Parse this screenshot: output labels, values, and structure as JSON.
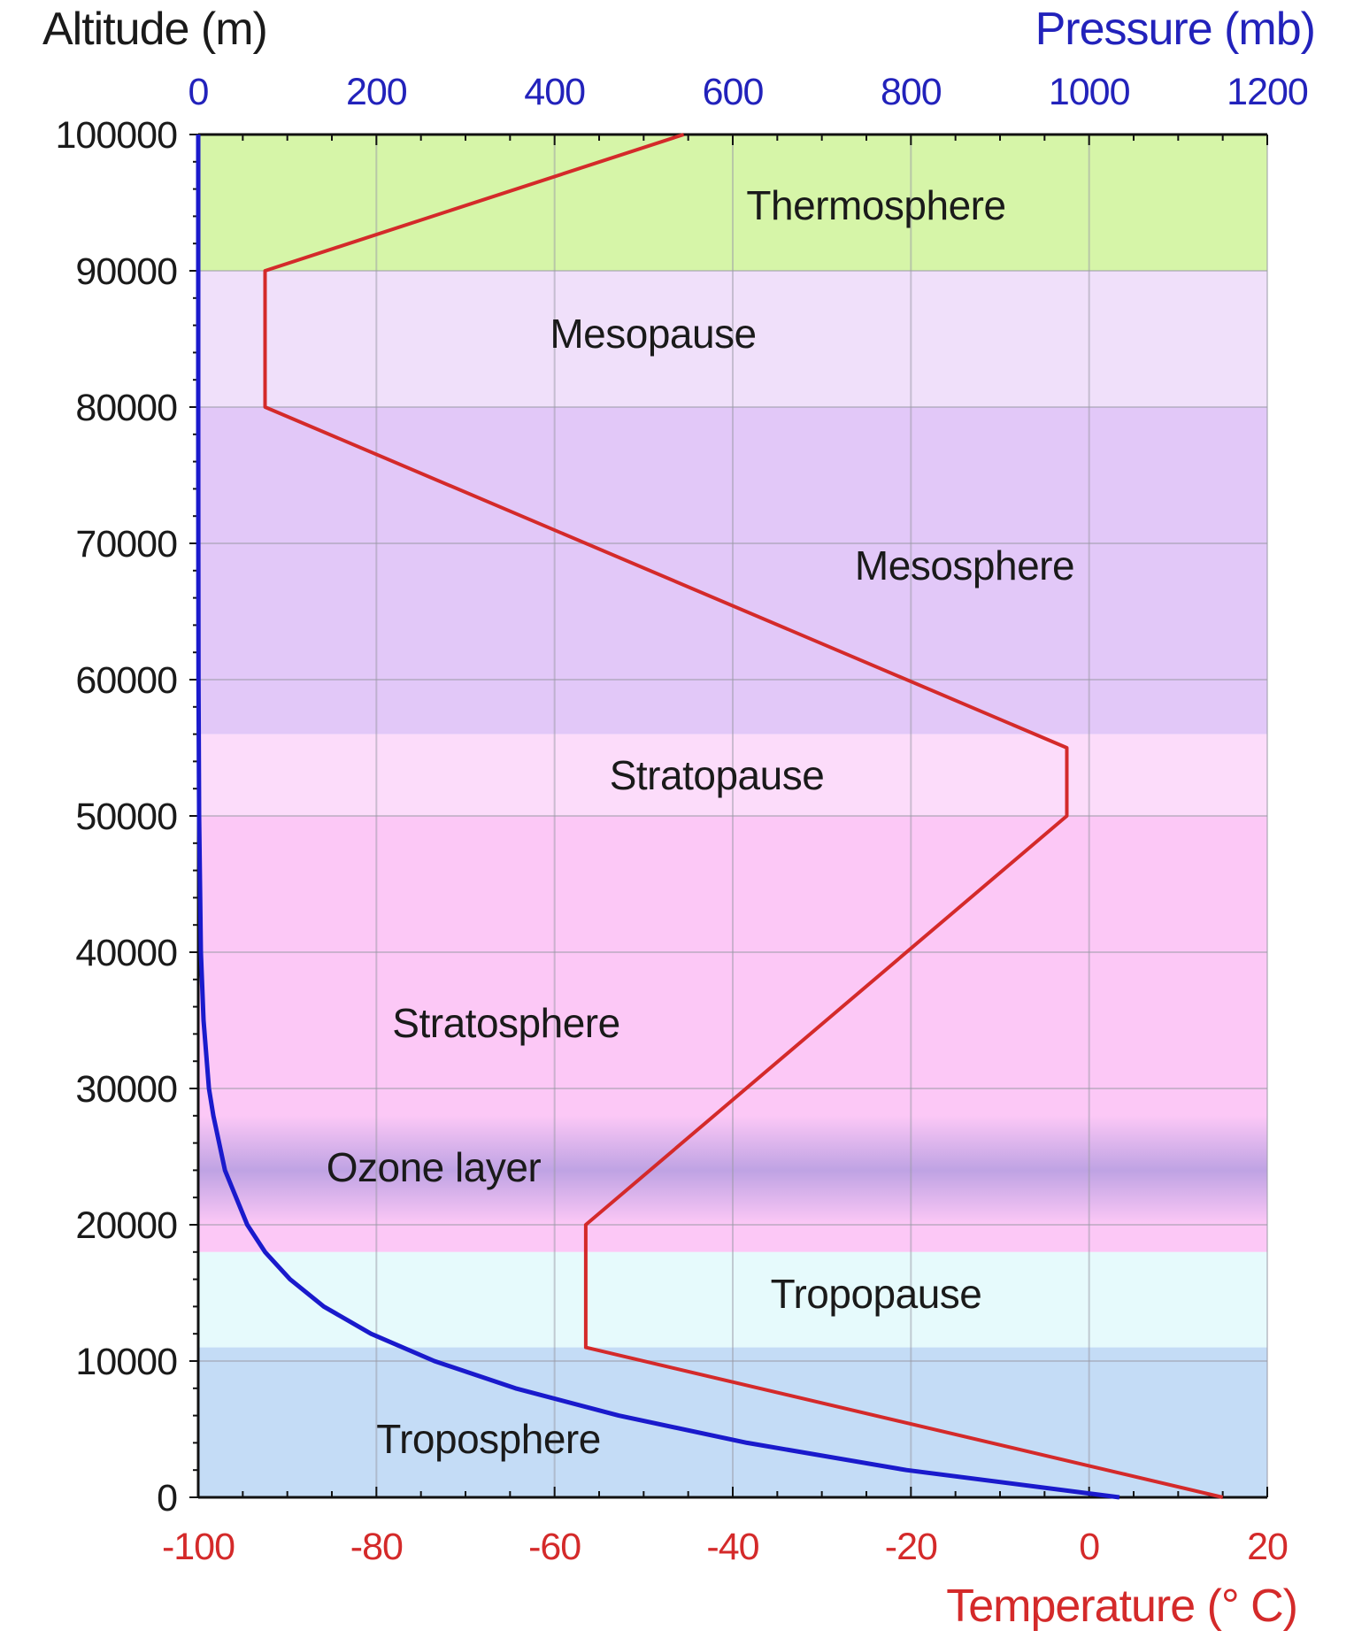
{
  "chart_data": {
    "type": "line",
    "axes": {
      "left": {
        "title": "Altitude (m)",
        "range": [
          0,
          100000
        ],
        "ticks": [
          "100000",
          "90000",
          "80000",
          "70000",
          "60000",
          "50000",
          "40000",
          "30000",
          "20000",
          "10000",
          "0"
        ],
        "color": "#1a1a1a"
      },
      "top": {
        "title": "Pressure (mb)",
        "range": [
          0,
          1200
        ],
        "ticks": [
          "0",
          "200",
          "400",
          "600",
          "800",
          "1000",
          "1200"
        ],
        "color": "#2222bb"
      },
      "bottom": {
        "title": "Temperature (° C)",
        "range": [
          -100,
          20
        ],
        "ticks": [
          "-100",
          "-80",
          "-60",
          "-40",
          "-20",
          "0",
          "20"
        ],
        "color": "#d42a2a"
      }
    },
    "grid": true,
    "layers": [
      {
        "label": "Thermosphere",
        "from": 90000,
        "to": 100000,
        "color": "#d6f5a8"
      },
      {
        "label": "Mesopause",
        "from": 80000,
        "to": 90000,
        "color": "#f0e0fa"
      },
      {
        "label": "Mesosphere",
        "from": 56000,
        "to": 80000,
        "color": "#e2c8f8"
      },
      {
        "label": "Stratopause",
        "from": 50000,
        "to": 56000,
        "color": "#fcdcfa"
      },
      {
        "label": "Stratosphere",
        "from": 18000,
        "to": 50000,
        "color": "#fcc8f6"
      },
      {
        "label": "Tropopause",
        "from": 11000,
        "to": 18000,
        "color": "#e6fafc"
      },
      {
        "label": "Troposphere",
        "from": 0,
        "to": 11000,
        "color": "#c4dcf6"
      }
    ],
    "ozone_layer": {
      "label": "Ozone layer",
      "from": 20000,
      "to": 28000,
      "peak": 24000,
      "color": "#b49ce0"
    },
    "series": [
      {
        "axis": "bottom",
        "color": "#d42a2a",
        "points": [
          {
            "x": 15,
            "y": 0
          },
          {
            "x": -56.5,
            "y": 11000
          },
          {
            "x": -56.5,
            "y": 20000
          },
          {
            "x": -2.5,
            "y": 50000
          },
          {
            "x": -2.5,
            "y": 55000
          },
          {
            "x": -92.5,
            "y": 80000
          },
          {
            "x": -92.5,
            "y": 90000
          },
          {
            "x": -45.5,
            "y": 100000
          }
        ]
      },
      {
        "axis": "top",
        "color": "#1a1acc",
        "points": [
          {
            "x": 1034,
            "y": 0
          },
          {
            "x": 795,
            "y": 2000
          },
          {
            "x": 616,
            "y": 4000
          },
          {
            "x": 472,
            "y": 6000
          },
          {
            "x": 356,
            "y": 8000
          },
          {
            "x": 265,
            "y": 10000
          },
          {
            "x": 194,
            "y": 12000
          },
          {
            "x": 141,
            "y": 14000
          },
          {
            "x": 103,
            "y": 16000
          },
          {
            "x": 75,
            "y": 18000
          },
          {
            "x": 55,
            "y": 20000
          },
          {
            "x": 30,
            "y": 24000
          },
          {
            "x": 17,
            "y": 28000
          },
          {
            "x": 12,
            "y": 30000
          },
          {
            "x": 6,
            "y": 35000
          },
          {
            "x": 3,
            "y": 40000
          },
          {
            "x": 1,
            "y": 50000
          },
          {
            "x": 0.3,
            "y": 60000
          },
          {
            "x": 0.1,
            "y": 70000
          },
          {
            "x": 0.02,
            "y": 80000
          },
          {
            "x": 0.005,
            "y": 90000
          },
          {
            "x": 0,
            "y": 100000
          }
        ]
      }
    ]
  }
}
